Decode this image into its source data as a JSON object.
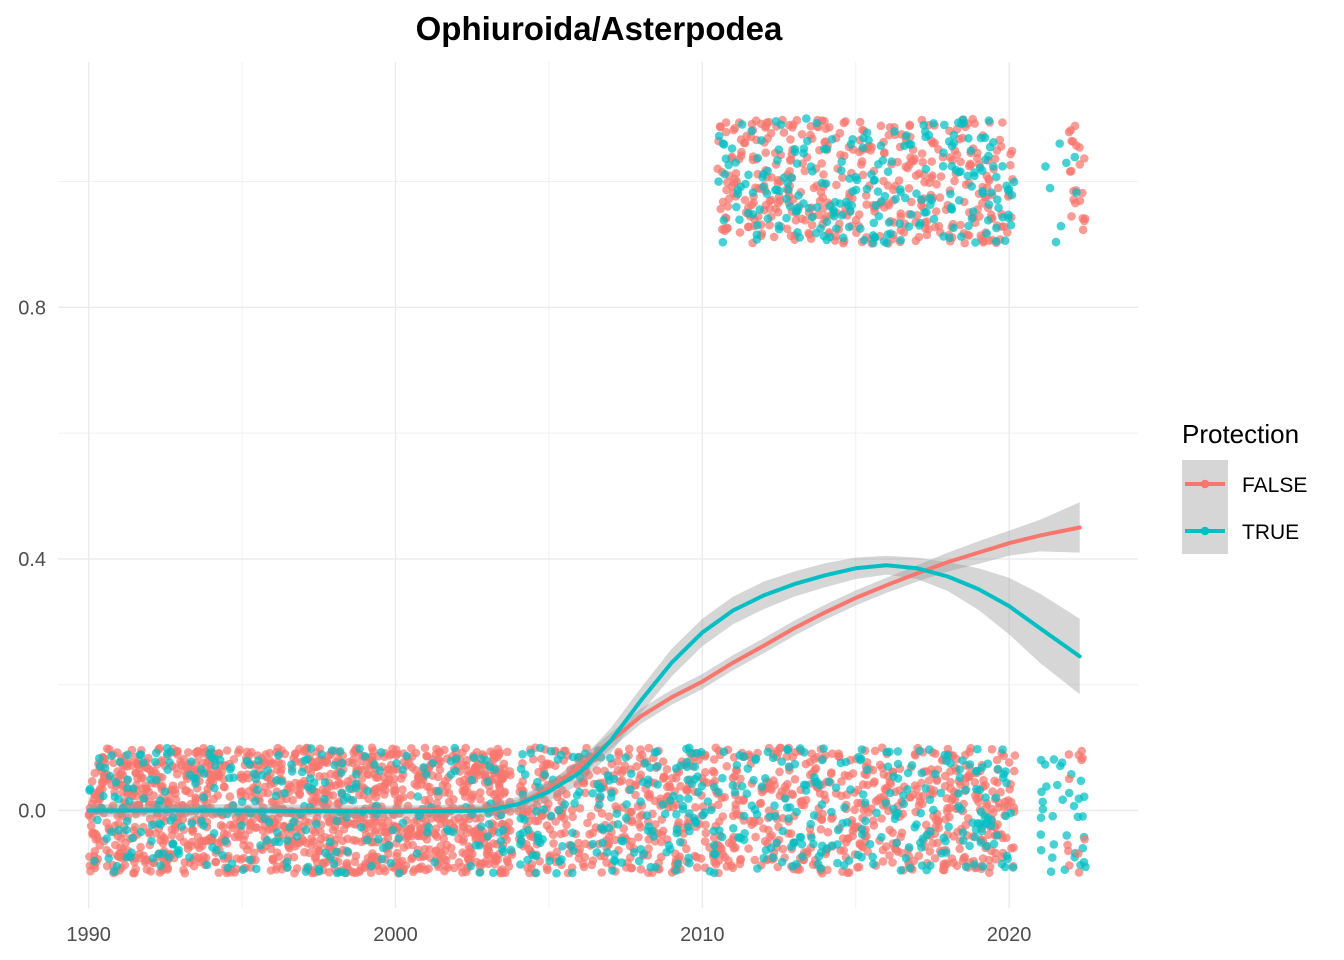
{
  "chart_data": {
    "type": "scatter",
    "title": "Ophiuroida/Asterpodea",
    "xlabel": "",
    "ylabel": "",
    "xlim": [
      1989,
      2024.2
    ],
    "ylim": [
      -0.155,
      1.19
    ],
    "x_ticks": [
      1990,
      2000,
      2010,
      2020
    ],
    "x_tick_labels": [
      "1990",
      "2000",
      "2010",
      "2020"
    ],
    "y_ticks": [
      0.0,
      0.4,
      0.8
    ],
    "y_tick_labels": [
      "0.0",
      "0.4",
      "0.8"
    ],
    "grid": true,
    "legend": {
      "title": "Protection",
      "placement": "right",
      "entries": [
        "FALSE",
        "TRUE"
      ]
    },
    "series": [
      {
        "name": "FALSE",
        "color": "#F8766D",
        "smooth_x": [
          1990,
          1995,
          2000,
          2003,
          2004,
          2005,
          2006,
          2007,
          2008,
          2009,
          2010,
          2011,
          2012,
          2013,
          2014,
          2015,
          2016,
          2017,
          2018,
          2019,
          2020,
          2021,
          2022.3
        ],
        "smooth_y": [
          0.0,
          0.0,
          0.0,
          0.002,
          0.01,
          0.035,
          0.07,
          0.11,
          0.15,
          0.18,
          0.205,
          0.235,
          0.262,
          0.29,
          0.315,
          0.338,
          0.358,
          0.377,
          0.395,
          0.41,
          0.425,
          0.437,
          0.45
        ],
        "band_upper": [
          0.005,
          0.005,
          0.005,
          0.007,
          0.018,
          0.045,
          0.082,
          0.123,
          0.162,
          0.192,
          0.217,
          0.247,
          0.274,
          0.302,
          0.327,
          0.35,
          0.37,
          0.39,
          0.41,
          0.428,
          0.445,
          0.462,
          0.49
        ],
        "band_lower": [
          -0.005,
          -0.005,
          -0.005,
          -0.003,
          0.002,
          0.025,
          0.058,
          0.097,
          0.138,
          0.168,
          0.193,
          0.223,
          0.25,
          0.278,
          0.303,
          0.326,
          0.346,
          0.364,
          0.38,
          0.392,
          0.405,
          0.412,
          0.41
        ]
      },
      {
        "name": "TRUE",
        "color": "#00BFC4",
        "smooth_x": [
          1990,
          1995,
          2000,
          2003,
          2004,
          2005,
          2006,
          2007,
          2008,
          2009,
          2010,
          2011,
          2012,
          2013,
          2014,
          2015,
          2016,
          2017,
          2018,
          2019,
          2020,
          2021,
          2022.3
        ],
        "smooth_y": [
          0.0,
          0.0,
          -0.002,
          0.0,
          0.01,
          0.03,
          0.06,
          0.11,
          0.175,
          0.235,
          0.283,
          0.318,
          0.342,
          0.36,
          0.374,
          0.385,
          0.39,
          0.385,
          0.372,
          0.352,
          0.325,
          0.29,
          0.245
        ],
        "band_upper": [
          0.01,
          0.01,
          0.008,
          0.01,
          0.022,
          0.045,
          0.078,
          0.13,
          0.195,
          0.257,
          0.305,
          0.34,
          0.364,
          0.38,
          0.393,
          0.402,
          0.405,
          0.402,
          0.395,
          0.385,
          0.37,
          0.345,
          0.305
        ],
        "band_lower": [
          -0.01,
          -0.01,
          -0.012,
          -0.01,
          -0.002,
          0.015,
          0.042,
          0.09,
          0.155,
          0.213,
          0.261,
          0.296,
          0.32,
          0.34,
          0.355,
          0.368,
          0.375,
          0.368,
          0.349,
          0.319,
          0.28,
          0.235,
          0.185
        ]
      }
    ],
    "points": {
      "description": "jittered 0/1 observations",
      "groups": [
        {
          "series": "FALSE",
          "x_range": [
            1990,
            2003.8
          ],
          "y_center": 0,
          "count": 1400
        },
        {
          "series": "TRUE",
          "x_range": [
            1990,
            2003.8
          ],
          "y_center": 0,
          "count": 260
        },
        {
          "series": "FALSE",
          "x_range": [
            2004,
            2020.2
          ],
          "y_center": 0,
          "count": 900
        },
        {
          "series": "TRUE",
          "x_range": [
            2004,
            2020.2
          ],
          "y_center": 0,
          "count": 380
        },
        {
          "series": "TRUE",
          "x_range": [
            2021,
            2022.5
          ],
          "y_center": 0,
          "count": 35
        },
        {
          "series": "FALSE",
          "x_range": [
            2021.9,
            2022.5
          ],
          "y_center": 0,
          "count": 12
        },
        {
          "series": "FALSE",
          "x_range": [
            2010.5,
            2020.2
          ],
          "y_center": 1,
          "count": 420
        },
        {
          "series": "TRUE",
          "x_range": [
            2010.5,
            2020.2
          ],
          "y_center": 1,
          "count": 230
        },
        {
          "series": "FALSE",
          "x_range": [
            2021.9,
            2022.5
          ],
          "y_center": 1,
          "count": 22
        },
        {
          "series": "TRUE",
          "x_range": [
            2021.0,
            2022.5
          ],
          "y_center": 1,
          "count": 8
        }
      ],
      "jitter": 0.1
    }
  }
}
